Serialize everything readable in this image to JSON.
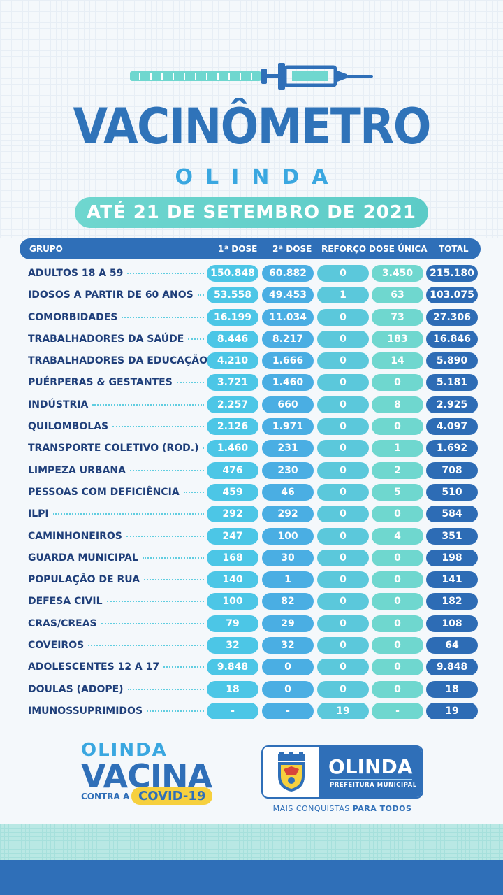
{
  "title": "VACINÔMETRO",
  "subtitle": "OLINDA",
  "date_label": "ATÉ 21 DE SETEMBRO DE 2021",
  "header": {
    "group": "GRUPO",
    "dose1": "1ª DOSE",
    "dose2": "2ª DOSE",
    "reforco": "REFORÇO",
    "dose_unica": "DOSE ÚNICA",
    "total": "TOTAL"
  },
  "rows": [
    {
      "group": "ADULTOS 18 A 59",
      "dose1": "150.848",
      "dose2": "60.882",
      "reforco": "0",
      "dose_unica": "3.450",
      "total": "215.180"
    },
    {
      "group": "IDOSOS A PARTIR DE 60 ANOS",
      "dose1": "53.558",
      "dose2": "49.453",
      "reforco": "1",
      "dose_unica": "63",
      "total": "103.075"
    },
    {
      "group": "COMORBIDADES",
      "dose1": "16.199",
      "dose2": "11.034",
      "reforco": "0",
      "dose_unica": "73",
      "total": "27.306"
    },
    {
      "group": "TRABALHADORES DA SAÚDE",
      "dose1": "8.446",
      "dose2": "8.217",
      "reforco": "0",
      "dose_unica": "183",
      "total": "16.846"
    },
    {
      "group": "TRABALHADORES DA EDUCAÇÃO",
      "dose1": "4.210",
      "dose2": "1.666",
      "reforco": "0",
      "dose_unica": "14",
      "total": "5.890"
    },
    {
      "group": "PUÉRPERAS & GESTANTES",
      "dose1": "3.721",
      "dose2": "1.460",
      "reforco": "0",
      "dose_unica": "0",
      "total": "5.181"
    },
    {
      "group": "INDÚSTRIA",
      "dose1": "2.257",
      "dose2": "660",
      "reforco": "0",
      "dose_unica": "8",
      "total": "2.925"
    },
    {
      "group": "QUILOMBOLAS",
      "dose1": "2.126",
      "dose2": "1.971",
      "reforco": "0",
      "dose_unica": "0",
      "total": "4.097"
    },
    {
      "group": "TRANSPORTE COLETIVO (ROD.)",
      "dose1": "1.460",
      "dose2": "231",
      "reforco": "0",
      "dose_unica": "1",
      "total": "1.692"
    },
    {
      "group": "LIMPEZA URBANA",
      "dose1": "476",
      "dose2": "230",
      "reforco": "0",
      "dose_unica": "2",
      "total": "708"
    },
    {
      "group": "PESSOAS COM DEFICIÊNCIA",
      "dose1": "459",
      "dose2": "46",
      "reforco": "0",
      "dose_unica": "5",
      "total": "510"
    },
    {
      "group": "ILPI",
      "dose1": "292",
      "dose2": "292",
      "reforco": "0",
      "dose_unica": "0",
      "total": "584"
    },
    {
      "group": "CAMINHONEIROS",
      "dose1": "247",
      "dose2": "100",
      "reforco": "0",
      "dose_unica": "4",
      "total": "351"
    },
    {
      "group": "GUARDA MUNICIPAL",
      "dose1": "168",
      "dose2": "30",
      "reforco": "0",
      "dose_unica": "0",
      "total": "198"
    },
    {
      "group": "POPULAÇÃO DE RUA",
      "dose1": "140",
      "dose2": "1",
      "reforco": "0",
      "dose_unica": "0",
      "total": "141"
    },
    {
      "group": "DEFESA CIVIL",
      "dose1": "100",
      "dose2": "82",
      "reforco": "0",
      "dose_unica": "0",
      "total": "182"
    },
    {
      "group": "CRAS/CREAS",
      "dose1": "79",
      "dose2": "29",
      "reforco": "0",
      "dose_unica": "0",
      "total": "108"
    },
    {
      "group": "COVEIROS",
      "dose1": "32",
      "dose2": "32",
      "reforco": "0",
      "dose_unica": "0",
      "total": "64"
    },
    {
      "group": "ADOLESCENTES 12 A 17",
      "dose1": "9.848",
      "dose2": "0",
      "reforco": "0",
      "dose_unica": "0",
      "total": "9.848"
    },
    {
      "group": "DOULAS (ADOPE)",
      "dose1": "18",
      "dose2": "0",
      "reforco": "0",
      "dose_unica": "0",
      "total": "18"
    },
    {
      "group": "IMUNOSSUPRIMIDOS",
      "dose1": "-",
      "dose2": "-",
      "reforco": "19",
      "dose_unica": "-",
      "total": "19"
    }
  ],
  "footer": {
    "campaign_top": "OLINDA",
    "campaign_main": "VACINA",
    "campaign_contra": "CONTRA A",
    "campaign_covid": "COVID-19",
    "logo_title": "OLINDA",
    "logo_sub": "PREFEITURA MUNICIPAL",
    "tagline_prefix": "MAIS CONQUISTAS",
    "tagline_bold": "PARA TODOS"
  },
  "colors": {
    "primary_blue": "#2f6fb8",
    "light_blue": "#4cc6e6",
    "teal": "#6fd7cf",
    "yellow": "#f6d03e"
  },
  "icons": [
    "syringe-icon",
    "olinda-crest-icon"
  ]
}
